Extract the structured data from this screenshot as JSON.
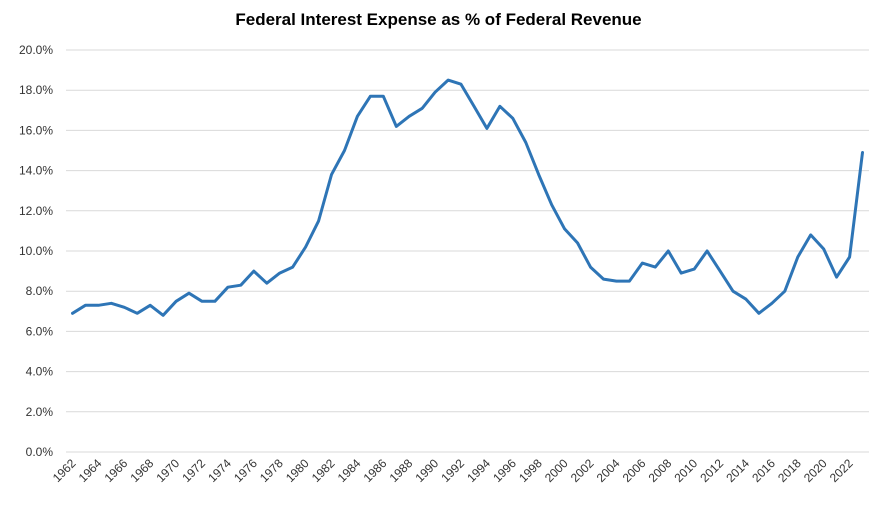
{
  "chart_data": {
    "type": "line",
    "title": "Federal Interest Expense as % of Federal Revenue",
    "xlabel": "",
    "ylabel": "",
    "ylim": [
      0,
      20
    ],
    "yticks": [
      "0.0%",
      "2.0%",
      "4.0%",
      "6.0%",
      "8.0%",
      "10.0%",
      "12.0%",
      "14.0%",
      "16.0%",
      "18.0%",
      "20.0%"
    ],
    "xticks": [
      "1962",
      "1964",
      "1966",
      "1968",
      "1970",
      "1972",
      "1974",
      "1976",
      "1978",
      "1980",
      "1982",
      "1984",
      "1986",
      "1988",
      "1990",
      "1992",
      "1994",
      "1996",
      "1998",
      "2000",
      "2002",
      "2004",
      "2006",
      "2008",
      "2010",
      "2012",
      "2014",
      "2016",
      "2018",
      "2020",
      "2022"
    ],
    "grid": true,
    "line_color": "#2E75B6",
    "series": [
      {
        "x": [
          1962,
          1963,
          1964,
          1965,
          1966,
          1967,
          1968,
          1969,
          1970,
          1971,
          1972,
          1973,
          1974,
          1975,
          1976,
          1977,
          1978,
          1979,
          1980,
          1981,
          1982,
          1983,
          1984,
          1985,
          1986,
          1987,
          1988,
          1989,
          1990,
          1991,
          1992,
          1993,
          1994,
          1995,
          1996,
          1997,
          1998,
          1999,
          2000,
          2001,
          2002,
          2003,
          2004,
          2005,
          2006,
          2007,
          2008,
          2009,
          2010,
          2011,
          2012,
          2013,
          2014,
          2015,
          2016,
          2017,
          2018,
          2019,
          2020,
          2021,
          2022,
          2023
        ],
        "values": [
          6.9,
          7.3,
          7.3,
          7.4,
          7.2,
          6.9,
          7.3,
          6.8,
          7.5,
          7.9,
          7.5,
          7.5,
          8.2,
          8.3,
          9.0,
          8.4,
          8.9,
          9.2,
          10.2,
          11.5,
          13.8,
          15.0,
          16.7,
          17.7,
          17.7,
          16.2,
          16.7,
          17.1,
          17.9,
          18.5,
          18.3,
          17.2,
          16.1,
          17.2,
          16.6,
          15.4,
          13.8,
          12.3,
          11.1,
          10.4,
          9.2,
          8.6,
          8.5,
          8.5,
          9.4,
          9.2,
          10.0,
          8.9,
          9.1,
          10.0,
          9.0,
          8.0,
          7.6,
          6.9,
          7.4,
          8.0,
          9.7,
          10.8,
          10.1,
          8.7,
          9.7,
          14.9
        ]
      }
    ]
  }
}
